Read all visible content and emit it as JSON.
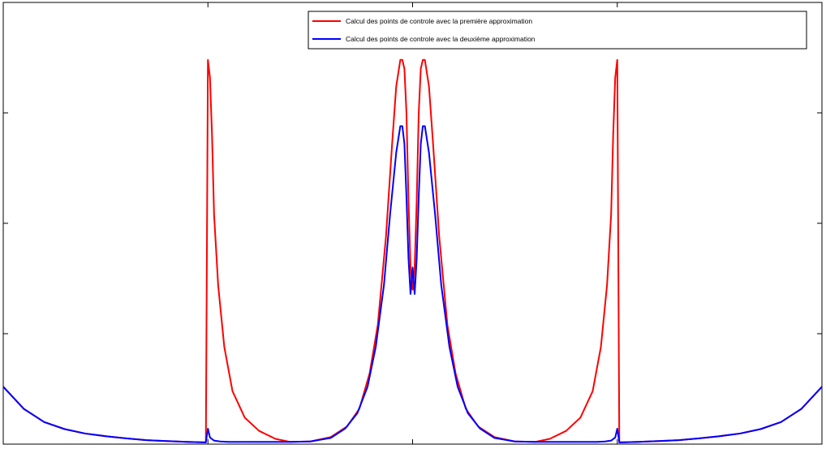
{
  "chart_data": {
    "type": "line",
    "title": "",
    "xlabel": "",
    "ylabel": "",
    "xlim": [
      0,
      4
    ],
    "ylim": [
      0,
      1
    ],
    "grid": false,
    "legend_position": "top-right",
    "x_ticks": [
      1,
      2,
      3
    ],
    "y_ticks": [
      0.25,
      0.5,
      0.75
    ],
    "series": [
      {
        "name": "Calcul des points de controle avec la première approximation",
        "color": "#ff0000",
        "x": [
          0,
          0.1,
          0.2,
          0.3,
          0.4,
          0.5,
          0.6,
          0.7,
          0.8,
          0.9,
          0.99,
          1.0,
          1.01,
          1.02,
          1.03,
          1.05,
          1.08,
          1.12,
          1.18,
          1.25,
          1.33,
          1.4,
          1.5,
          1.6,
          1.68,
          1.74,
          1.79,
          1.83,
          1.87,
          1.9,
          1.92,
          1.94,
          1.95,
          1.96,
          1.97,
          1.98,
          1.99,
          2.0,
          2.01,
          2.02,
          2.03,
          2.04,
          2.05,
          2.06,
          2.08,
          2.1,
          2.13,
          2.17,
          2.21,
          2.26,
          2.32,
          2.4,
          2.5,
          2.6,
          2.67,
          2.75,
          2.82,
          2.88,
          2.92,
          2.95,
          2.97,
          2.98,
          2.99,
          3.0,
          3.01,
          3.1,
          3.2,
          3.3,
          3.4,
          3.5,
          3.6,
          3.7,
          3.8,
          3.9,
          4.0
        ],
        "y": [
          0.13,
          0.08,
          0.05,
          0.034,
          0.024,
          0.018,
          0.013,
          0.009,
          0.007,
          0.005,
          0.004,
          0.87,
          0.83,
          0.7,
          0.52,
          0.36,
          0.22,
          0.12,
          0.06,
          0.03,
          0.012,
          0.005,
          0.006,
          0.016,
          0.04,
          0.08,
          0.16,
          0.27,
          0.47,
          0.68,
          0.81,
          0.87,
          0.87,
          0.85,
          0.75,
          0.55,
          0.4,
          0.35,
          0.4,
          0.55,
          0.75,
          0.85,
          0.87,
          0.87,
          0.81,
          0.68,
          0.47,
          0.27,
          0.16,
          0.08,
          0.04,
          0.016,
          0.006,
          0.005,
          0.012,
          0.03,
          0.06,
          0.12,
          0.22,
          0.36,
          0.52,
          0.7,
          0.83,
          0.87,
          0.004,
          0.005,
          0.007,
          0.009,
          0.013,
          0.018,
          0.024,
          0.034,
          0.05,
          0.08,
          0.13
        ]
      },
      {
        "name": "Calcul des points de controle avec la deuxième approximation",
        "color": "#0000ff",
        "x": [
          0,
          0.1,
          0.2,
          0.3,
          0.4,
          0.5,
          0.6,
          0.7,
          0.8,
          0.9,
          0.99,
          1.0,
          1.01,
          1.03,
          1.06,
          1.1,
          1.2,
          1.3,
          1.4,
          1.5,
          1.6,
          1.67,
          1.73,
          1.78,
          1.82,
          1.86,
          1.89,
          1.92,
          1.94,
          1.95,
          1.96,
          1.97,
          1.98,
          1.99,
          2.0,
          2.01,
          2.02,
          2.03,
          2.04,
          2.05,
          2.06,
          2.08,
          2.11,
          2.14,
          2.18,
          2.22,
          2.27,
          2.33,
          2.4,
          2.5,
          2.6,
          2.7,
          2.8,
          2.9,
          2.94,
          2.97,
          2.99,
          3.0,
          3.01,
          3.1,
          3.2,
          3.3,
          3.4,
          3.5,
          3.6,
          3.7,
          3.8,
          3.9,
          4.0
        ],
        "y": [
          0.13,
          0.08,
          0.05,
          0.034,
          0.024,
          0.018,
          0.013,
          0.009,
          0.007,
          0.005,
          0.004,
          0.035,
          0.015,
          0.008,
          0.006,
          0.005,
          0.005,
          0.005,
          0.005,
          0.006,
          0.014,
          0.035,
          0.07,
          0.13,
          0.22,
          0.36,
          0.52,
          0.66,
          0.72,
          0.72,
          0.68,
          0.56,
          0.42,
          0.34,
          0.4,
          0.34,
          0.42,
          0.56,
          0.68,
          0.72,
          0.72,
          0.66,
          0.52,
          0.36,
          0.22,
          0.13,
          0.07,
          0.035,
          0.014,
          0.006,
          0.005,
          0.005,
          0.005,
          0.005,
          0.006,
          0.008,
          0.015,
          0.035,
          0.004,
          0.005,
          0.007,
          0.009,
          0.013,
          0.018,
          0.024,
          0.034,
          0.05,
          0.08,
          0.13
        ]
      }
    ]
  }
}
